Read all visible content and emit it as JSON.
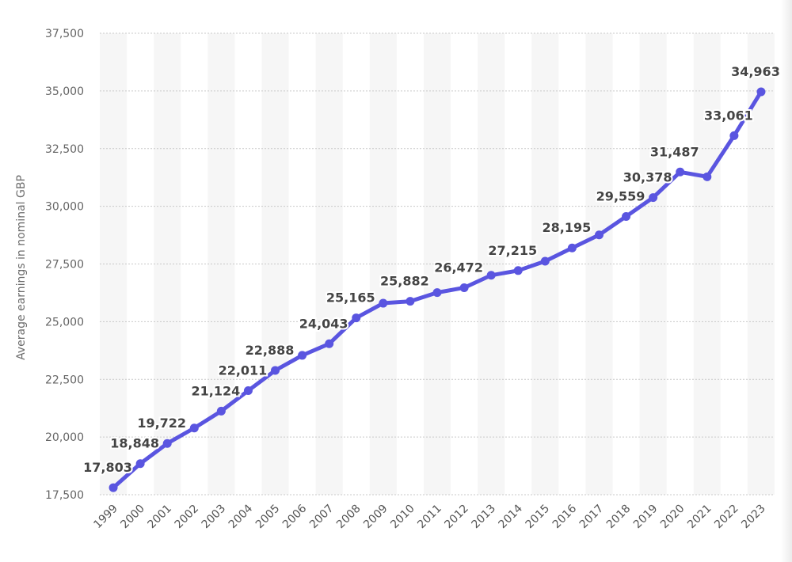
{
  "chart_data": {
    "type": "line",
    "title": "",
    "xlabel": "",
    "ylabel": "Average earnings in nominal GBP",
    "ylim": [
      17500,
      37500
    ],
    "yticks": [
      17500,
      20000,
      22500,
      25000,
      27500,
      30000,
      32500,
      35000,
      37500
    ],
    "ytick_labels": [
      "17,500",
      "20,000",
      "22,500",
      "25,000",
      "27,500",
      "30,000",
      "32,500",
      "35,000",
      "37,500"
    ],
    "grid": true,
    "legend": "none",
    "categories": [
      "1999",
      "2000",
      "2001",
      "2002",
      "2003",
      "2004",
      "2005",
      "2006",
      "2007",
      "2008",
      "2009",
      "2010",
      "2011",
      "2012",
      "2013",
      "2014",
      "2015",
      "2016",
      "2017",
      "2018",
      "2019",
      "2020",
      "2021",
      "2022",
      "2023"
    ],
    "series": [
      {
        "name": "Average earnings",
        "color": "#5a55e0",
        "values": [
          17803,
          18848,
          19722,
          20390,
          21124,
          22011,
          22888,
          23540,
          24043,
          25165,
          25800,
          25882,
          26260,
          26472,
          27010,
          27215,
          27620,
          28195,
          28760,
          29559,
          30378,
          31487,
          31280,
          33061,
          34963
        ],
        "labels": [
          "17,803",
          "18,848",
          "19,722",
          "",
          "21,124",
          "22,011",
          "22,888",
          "",
          "24,043",
          "25,165",
          "",
          "25,882",
          "",
          "26,472",
          "",
          "27,215",
          "",
          "28,195",
          "",
          "29,559",
          "30,378",
          "31,487",
          "",
          "33,061",
          "34,963"
        ]
      }
    ]
  }
}
